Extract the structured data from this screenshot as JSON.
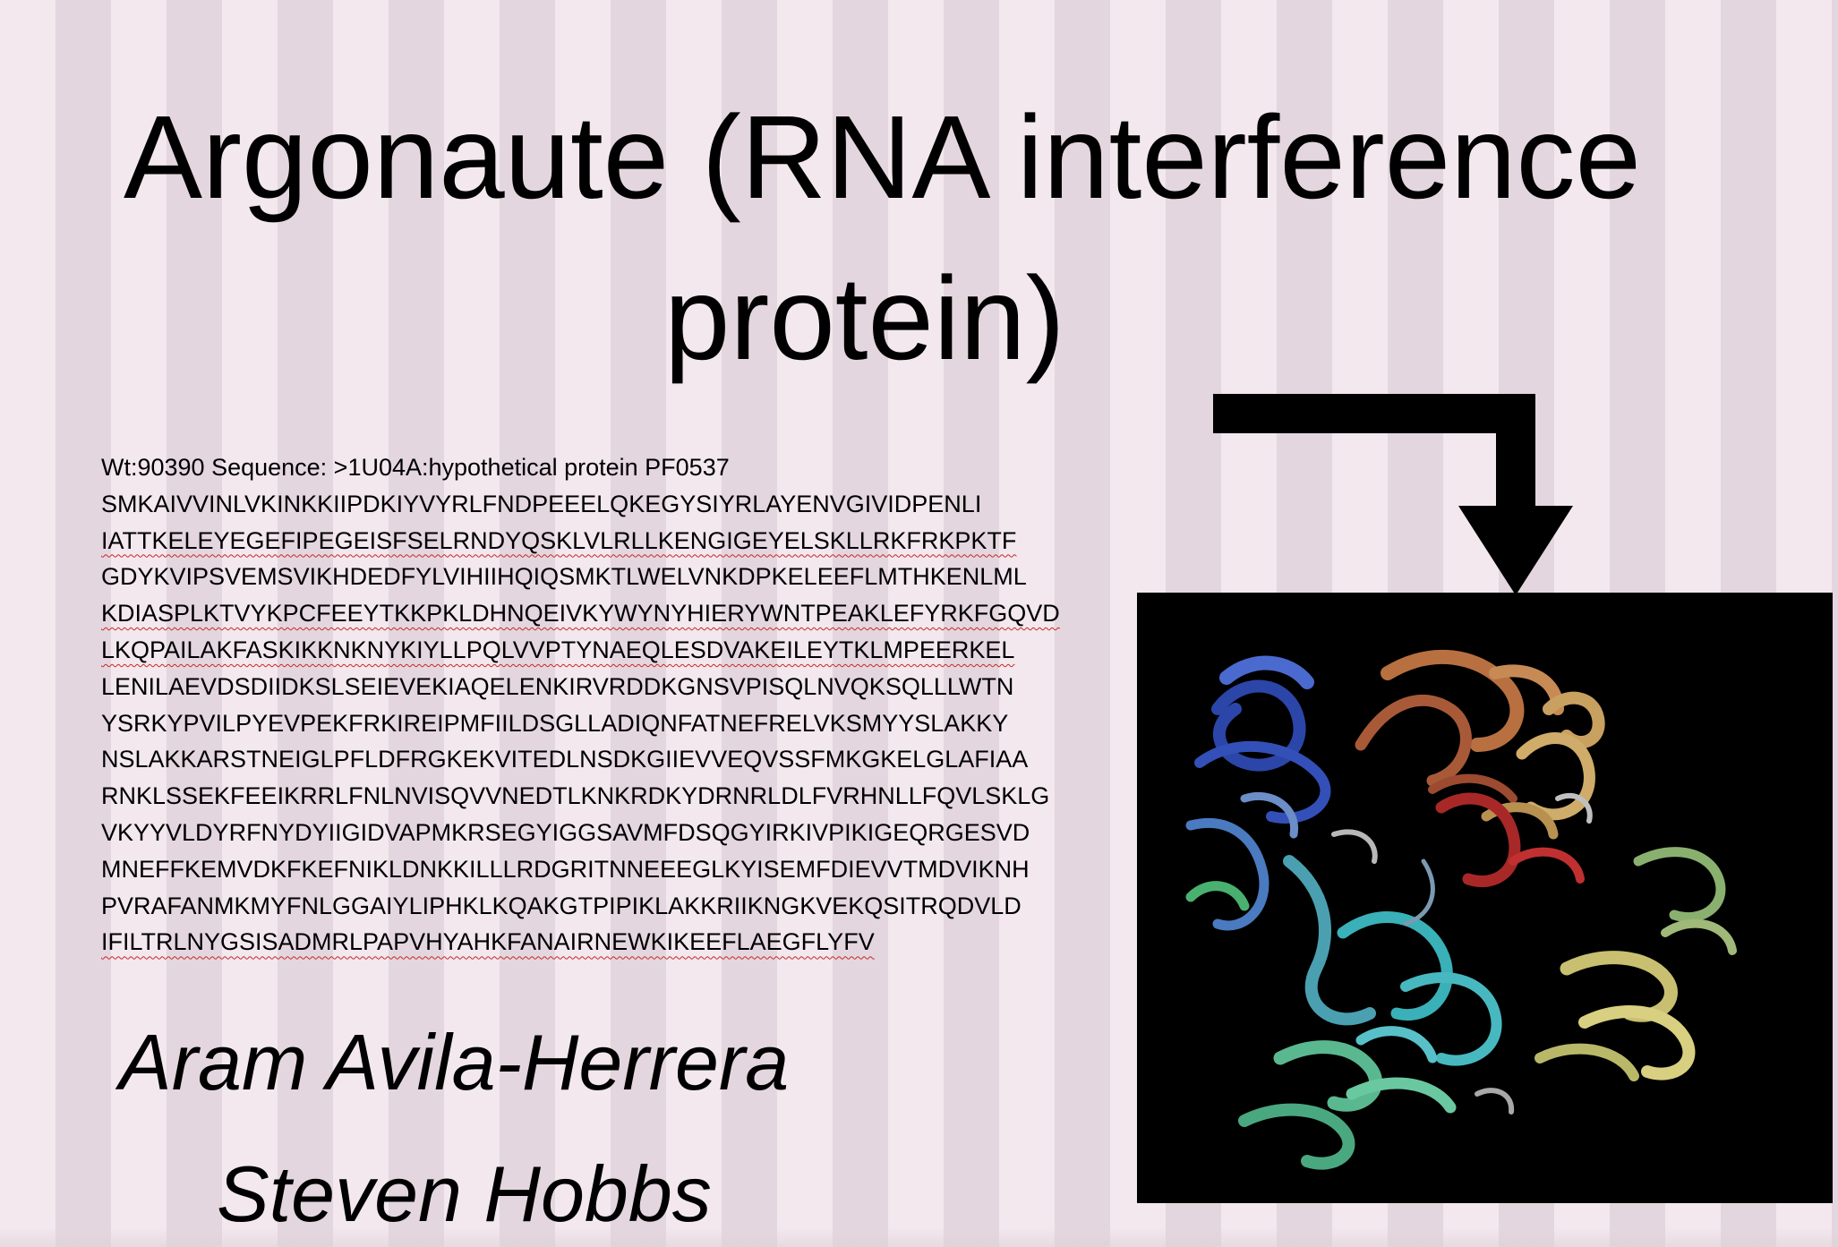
{
  "slide": {
    "title_lines": [
      "Argonaute (RNA interference",
      "protein)"
    ],
    "sequence": {
      "header": "Wt:90390 Sequence: >1U04A:hypothetical protein PF0537",
      "lines": [
        "SMKAIVVINLVKINKKIIPDKIYVYRLFNDPEEELQKEGYSIYRLAYENVGIVIDPENLI",
        "IATTKELEYEGEFIPEGEISFSELRNDYQSKLVLRLLKENGIGEYELSKLLRKFRKPKTF",
        "GDYKVIPSVEMSVIKHDEDFYLVIHIIHQIQSMKTLWELVNKDPKELEEFLMTHKENLML",
        "KDIASPLKTVYKPCFEEYTKKPKLDHNQEIVKYWYNYHIERYWNTPEAKLEFYRKFGQVD",
        "LKQPAILAKFASKIKKNKNYKIYLLPQLVVPTYNAEQLESDVAKEILEYTKLMPEERKEL",
        "LENILAEVDSDIIDKSLSEIEVEKIAQELENKIRVRDDKGNSVPISQLNVQKSQLLLWTN",
        "YSRKYPVILPYEVPEKFRKIREIPMFIILDSGLLADIQNFATNEFRELVKSMYYSLAKKY",
        "NSLAKKARSTNEIGLPFLDFRGKEKVITEDLNSDKGIIEVVEQVSSFMKGKELGLAFIAA",
        "RNKLSSEKFEEIKRRLFNLNVISQVVNEDTLKNKRDKYDRNRLDLFVRHNLLFQVLSKLG",
        "VKYYVLDYRFNYDYIIGIDVAPMKRSEGYIGGSAVMFDSQGYIRKIVPIKIGEQRGESVD",
        "MNEFFKEMVDKFKEFNIKLDNKKILLLRDGRITNNEEEGLKYISEMFDIEVVTMDVIKNH",
        "PVRAFANMKMYFNLGGAIYLIPHKLKQAKGTPIPIKLAKKRIIKNGKVEKQSITRQDVLD",
        "IFILTRLNYGSISADMRLPAPVHYAHKFANAIRNEWKIKEEFLAEGFLYFV"
      ]
    },
    "authors": [
      "Aram Avila-Herrera",
      "Steven Hobbs"
    ],
    "image": {
      "icon": "protein-ribbon-structure-image",
      "background_color": "#000000"
    },
    "arrow": {
      "icon": "bent-arrow-down-icon",
      "color": "#000000"
    }
  }
}
